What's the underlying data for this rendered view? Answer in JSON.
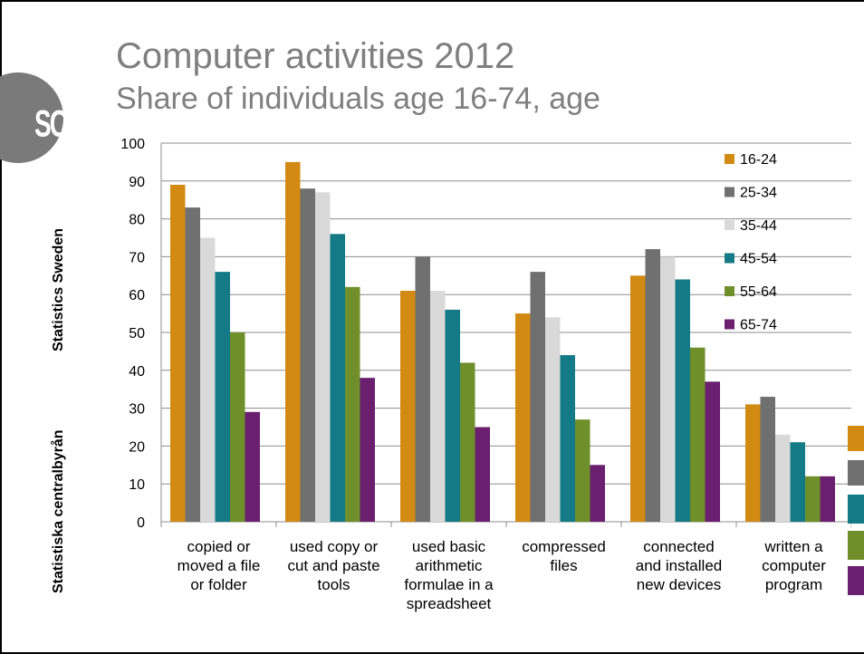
{
  "slide": {
    "title": "Computer activities 2012",
    "subtitle": "Share of individuals age 16-74, age",
    "logo_text": "SCB",
    "side_text_1": "Statistics Sweden",
    "side_text_2": "Statistiska centralbyrån"
  },
  "chart_data": {
    "type": "bar",
    "title": "",
    "xlabel": "",
    "ylabel": "",
    "ylim": [
      0,
      100
    ],
    "yticks": [
      0,
      10,
      20,
      30,
      40,
      50,
      60,
      70,
      80,
      90,
      100
    ],
    "grid": true,
    "legend_position": "top-right",
    "categories": [
      [
        "copied or",
        "moved a file",
        "or folder"
      ],
      [
        "used copy or",
        "cut and paste",
        "tools"
      ],
      [
        "used basic",
        "arithmetic",
        "formulae in a",
        "spreadsheet"
      ],
      [
        "compressed",
        "files"
      ],
      [
        "connected",
        "and installed",
        "new devices"
      ],
      [
        "written a",
        "computer",
        "program"
      ]
    ],
    "series": [
      {
        "name": "16-24",
        "color": "#D28A12",
        "values": [
          89,
          95,
          61,
          55,
          65,
          31
        ]
      },
      {
        "name": "25-34",
        "color": "#707070",
        "values": [
          83,
          88,
          70,
          66,
          72,
          33
        ]
      },
      {
        "name": "35-44",
        "color": "#D9D9D9",
        "values": [
          75,
          87,
          61,
          54,
          70,
          23
        ]
      },
      {
        "name": "45-54",
        "color": "#137A86",
        "values": [
          66,
          76,
          56,
          44,
          64,
          21
        ]
      },
      {
        "name": "55-64",
        "color": "#6F8F2A",
        "values": [
          50,
          62,
          42,
          27,
          46,
          12
        ]
      },
      {
        "name": "65-74",
        "color": "#6A1F6F",
        "values": [
          29,
          38,
          25,
          15,
          37,
          12
        ]
      }
    ]
  }
}
